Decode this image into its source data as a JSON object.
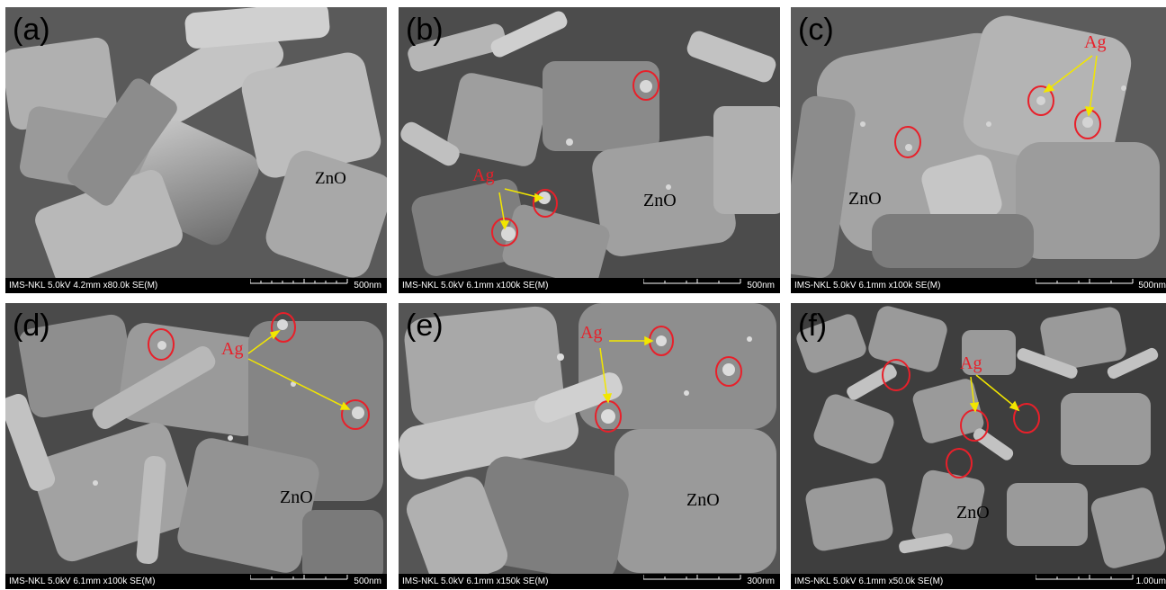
{
  "panels": [
    {
      "letter": "(a)",
      "params": "IMS-NKL 5.0kV 4.2mm x80.0k SE(M)",
      "scale": "500nm",
      "material": "ZnO",
      "ag": ""
    },
    {
      "letter": "(b)",
      "params": "IMS-NKL 5.0kV 6.1mm x100k SE(M)",
      "scale": "500nm",
      "material": "ZnO",
      "ag": "Ag"
    },
    {
      "letter": "(c)",
      "params": "IMS-NKL 5.0kV 6.1mm x100k SE(M)",
      "scale": "500nm",
      "material": "ZnO",
      "ag": "Ag"
    },
    {
      "letter": "(d)",
      "params": "IMS-NKL 5.0kV 6.1mm x100k SE(M)",
      "scale": "500nm",
      "material": "ZnO",
      "ag": "Ag"
    },
    {
      "letter": "(e)",
      "params": "IMS-NKL 5.0kV 6.1mm x150k SE(M)",
      "scale": "300nm",
      "material": "ZnO",
      "ag": "Ag"
    },
    {
      "letter": "(f)",
      "params": "IMS-NKL 5.0kV 6.1mm x50.0k SE(M)",
      "scale": "1.00um",
      "material": "ZnO",
      "ag": "Ag"
    }
  ],
  "colors": {
    "highlight": "#e8202a",
    "arrow": "#f2e600",
    "label_ag": "#e8202a",
    "label_zno": "#000000"
  }
}
